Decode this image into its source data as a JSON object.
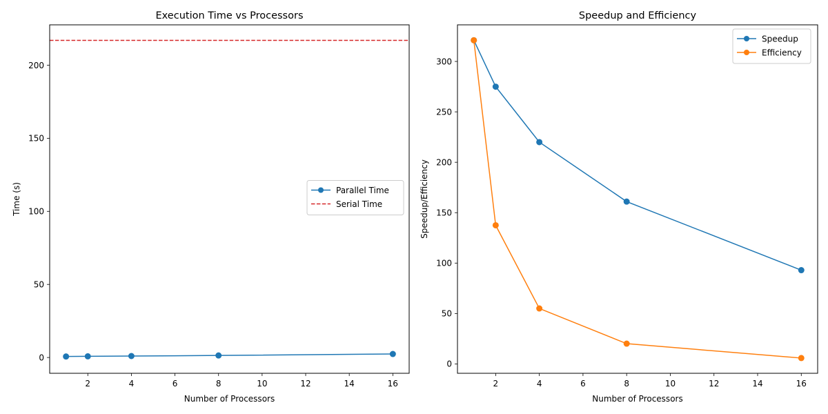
{
  "chart_data": [
    {
      "type": "line",
      "title": "Execution Time vs Processors",
      "xlabel": "Number of Processors",
      "ylabel": "Time (s)",
      "xlim": [
        0.25,
        16.75
      ],
      "ylim": [
        -10.8,
        227.6
      ],
      "xticks": [
        2,
        4,
        6,
        8,
        10,
        12,
        14,
        16
      ],
      "yticks": [
        0,
        50,
        100,
        150,
        200
      ],
      "legend_position": "center-right",
      "series": [
        {
          "name": "Parallel Time",
          "x": [
            1,
            2,
            4,
            8,
            16
          ],
          "y": [
            0.7,
            0.8,
            1.0,
            1.4,
            2.4
          ],
          "color": "#1f77b4",
          "style": "solid",
          "marker": "circle"
        }
      ],
      "hlines": [
        {
          "name": "Serial Time",
          "y": 217,
          "color": "#d62728",
          "style": "dashed"
        }
      ]
    },
    {
      "type": "line",
      "title": "Speedup and Efficiency",
      "xlabel": "Number of Processors",
      "ylabel": "Speedup/Efficiency",
      "xlim": [
        0.25,
        16.75
      ],
      "ylim": [
        -9.3,
        336.3
      ],
      "xticks": [
        2,
        4,
        6,
        8,
        10,
        12,
        14,
        16
      ],
      "yticks": [
        0,
        50,
        100,
        150,
        200,
        250,
        300
      ],
      "legend_position": "top-right",
      "series": [
        {
          "name": "Speedup",
          "x": [
            1,
            2,
            4,
            8,
            16
          ],
          "y": [
            321,
            275,
            220,
            161,
            93
          ],
          "color": "#1f77b4",
          "style": "solid",
          "marker": "circle"
        },
        {
          "name": "Efficiency",
          "x": [
            1,
            2,
            4,
            8,
            16
          ],
          "y": [
            321,
            137.5,
            55,
            20.1,
            5.8
          ],
          "color": "#ff7f0e",
          "style": "solid",
          "marker": "circle"
        }
      ]
    }
  ]
}
